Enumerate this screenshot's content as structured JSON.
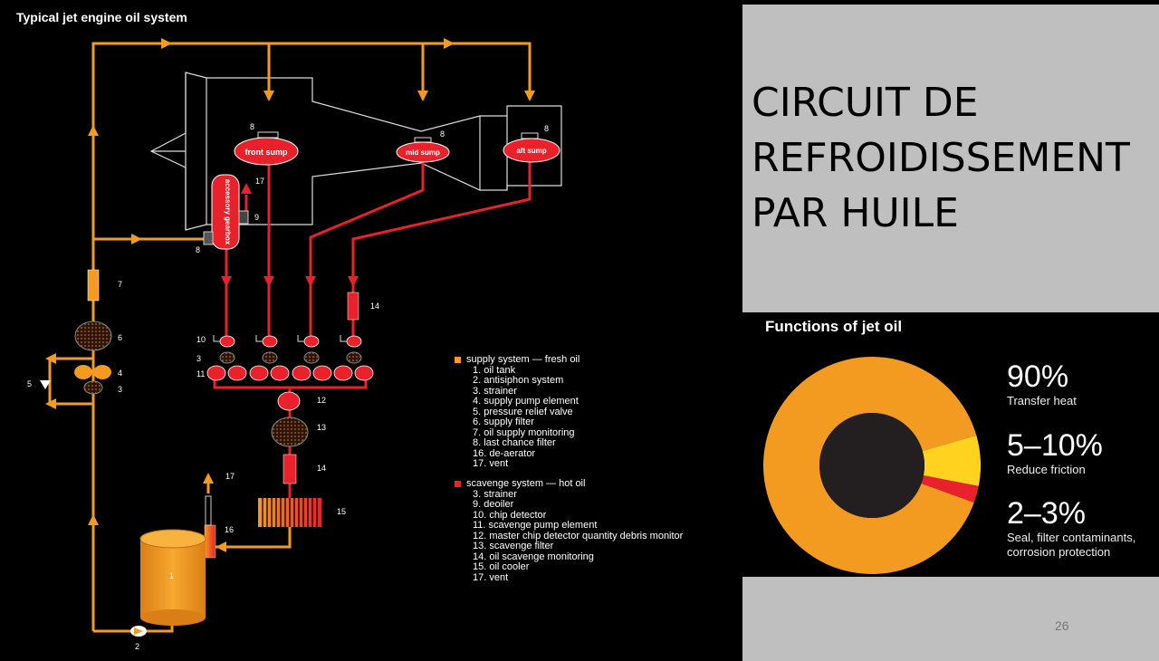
{
  "diagram": {
    "title": "Typical jet engine oil system",
    "sumps": {
      "front": "front sump",
      "mid": "mid sump",
      "aft": "aft sump"
    },
    "gearbox_label": "accessory gearbox",
    "numbers": {
      "n8a": "8",
      "n8b": "8",
      "n8c": "8",
      "n8d": "8",
      "n17a": "17",
      "n9": "9",
      "n14a": "14",
      "n7": "7",
      "n6": "6",
      "n5": "5",
      "n4": "4",
      "n3a": "3",
      "n10": "10",
      "n3b": "3",
      "n11": "11",
      "n12": "12",
      "n13": "13",
      "n14b": "14",
      "n17b": "17",
      "n15": "15",
      "n16": "16",
      "n1": "1",
      "n2": "2"
    },
    "colors": {
      "supply": "#f39a21",
      "scavenge": "#e8212b"
    }
  },
  "legend": {
    "supply": {
      "title": "supply system — fresh oil",
      "items": [
        "1. oil tank",
        "2. antisiphon system",
        "3. strainer",
        "4. supply pump element",
        "5. pressure relief valve",
        "6. supply filter",
        "7. oil supply monitoring",
        "8. last chance filter",
        "16. de-aerator",
        "17. vent"
      ]
    },
    "scavenge": {
      "title": "scavenge system — hot oil",
      "items": [
        "3. strainer",
        "9. deoiler",
        "10. chip detector",
        "11. scavenge pump element",
        "12. master chip detector quantity debris monitor",
        "13. scavenge filter",
        "14. oil scavenge monitoring",
        "15. oil cooler",
        "17. vent"
      ]
    }
  },
  "slide_title": "CIRCUIT DE REFROIDISSEMENT PAR HUILE",
  "functions": {
    "title": "Functions of jet oil",
    "stats": [
      {
        "pct": "90%",
        "desc": "Transfer heat"
      },
      {
        "pct": "5–10%",
        "desc": "Reduce friction"
      },
      {
        "pct": "2–3%",
        "desc": "Seal, filter contaminants, corrosion protection"
      }
    ]
  },
  "chart_data": {
    "type": "pie",
    "title": "Functions of jet oil",
    "categories": [
      "Transfer heat",
      "Reduce friction",
      "Seal, filter contaminants, corrosion protection"
    ],
    "values": [
      90,
      7.5,
      2.5
    ],
    "colors": [
      "#f39a21",
      "#ffd21f",
      "#e8212b"
    ]
  },
  "page_number": "26"
}
